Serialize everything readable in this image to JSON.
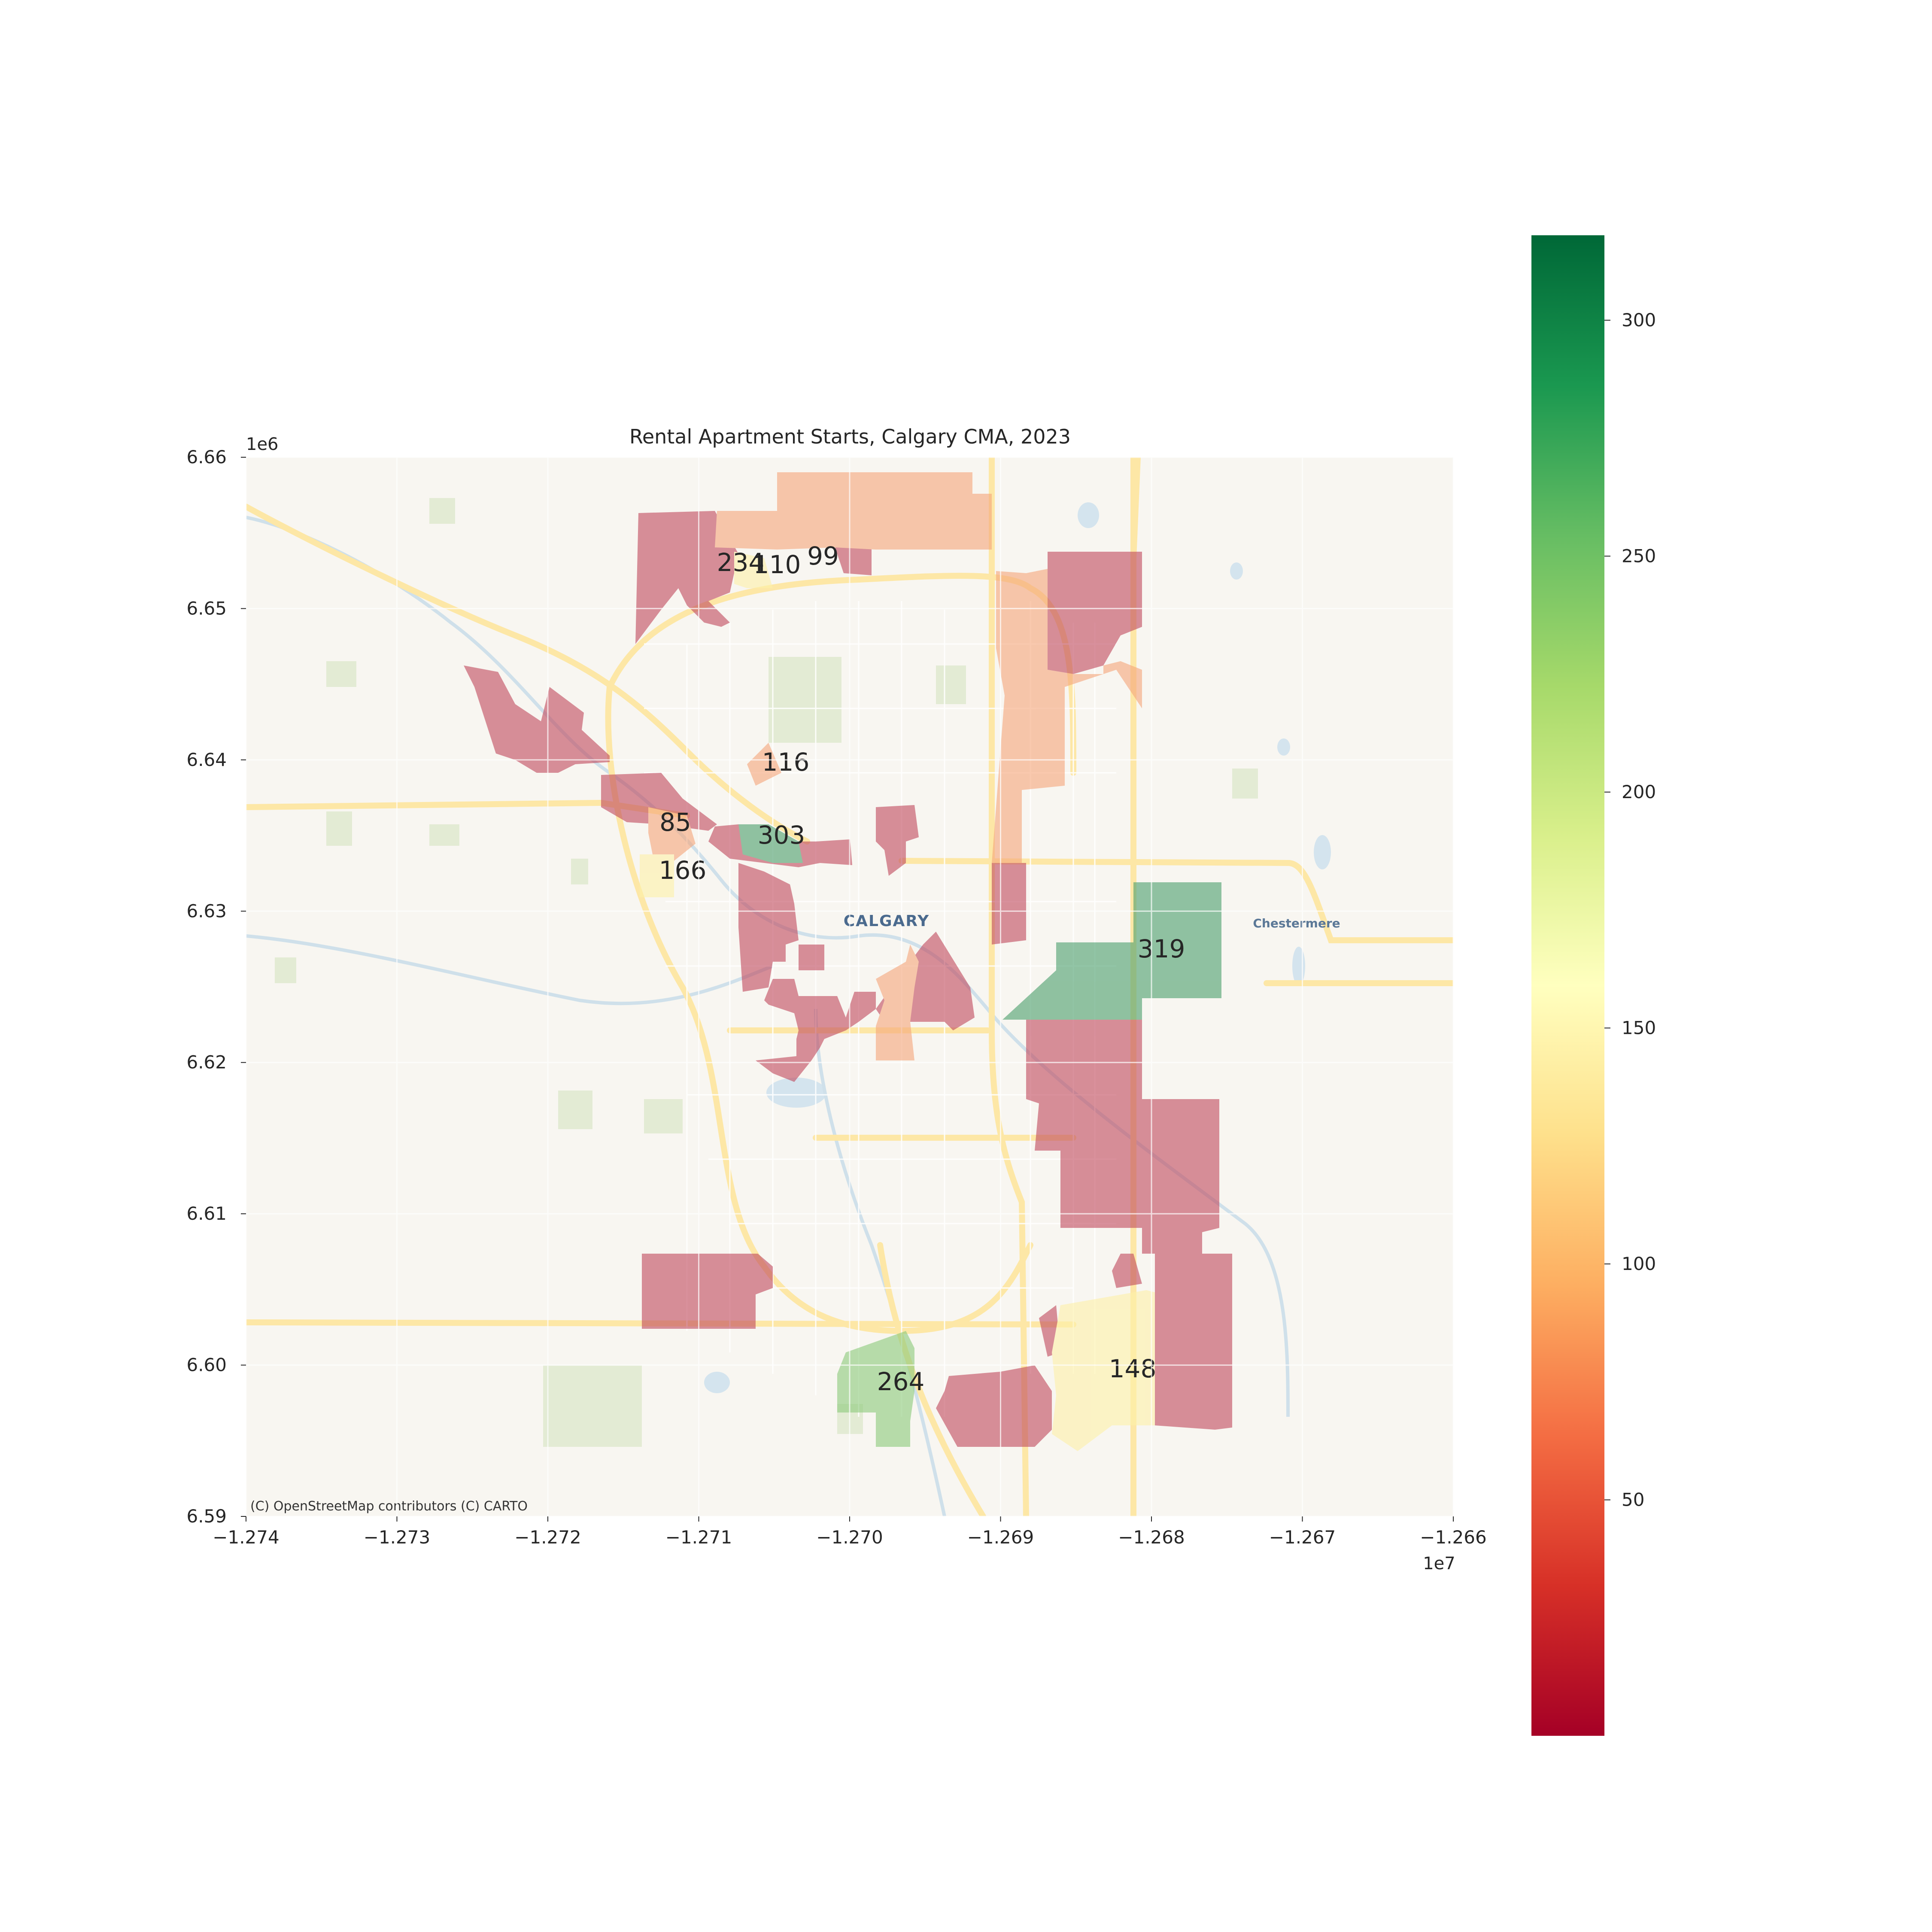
{
  "title": "Rental Apartment Starts, Calgary CMA, 2023",
  "attribution": "(C) OpenStreetMap contributors (C) CARTO",
  "place_labels": {
    "calgary": "CALGARY",
    "chestermere": "Chestermere"
  },
  "axes": {
    "x_ticks": [
      {
        "value": -1.274,
        "label": "−1.274"
      },
      {
        "value": -1.273,
        "label": "−1.273"
      },
      {
        "value": -1.272,
        "label": "−1.272"
      },
      {
        "value": -1.271,
        "label": "−1.271"
      },
      {
        "value": -1.27,
        "label": "−1.270"
      },
      {
        "value": -1.269,
        "label": "−1.269"
      },
      {
        "value": -1.268,
        "label": "−1.268"
      },
      {
        "value": -1.267,
        "label": "−1.267"
      },
      {
        "value": -1.266,
        "label": "−1.266"
      }
    ],
    "x_offset": "1e7",
    "x_range": [
      -1.274,
      -1.266
    ],
    "y_ticks": [
      {
        "value": 6.59,
        "label": "6.59"
      },
      {
        "value": 6.6,
        "label": "6.60"
      },
      {
        "value": 6.61,
        "label": "6.61"
      },
      {
        "value": 6.62,
        "label": "6.62"
      },
      {
        "value": 6.63,
        "label": "6.63"
      },
      {
        "value": 6.64,
        "label": "6.64"
      },
      {
        "value": 6.65,
        "label": "6.65"
      },
      {
        "value": 6.66,
        "label": "6.66"
      }
    ],
    "y_offset": "1e6",
    "y_range": [
      6.59,
      6.66
    ]
  },
  "colorbar": {
    "cmap": "RdYlGn",
    "range": [
      0,
      318
    ],
    "ticks": [
      {
        "value": 50,
        "label": "50"
      },
      {
        "value": 100,
        "label": "100"
      },
      {
        "value": 150,
        "label": "150"
      },
      {
        "value": 200,
        "label": "200"
      },
      {
        "value": 250,
        "label": "250"
      },
      {
        "value": 300,
        "label": "300"
      }
    ]
  },
  "labelled_areas": [
    {
      "label": "234",
      "value": 234
    },
    {
      "label": "110",
      "value": 110
    },
    {
      "label": "99",
      "value": 99
    },
    {
      "label": "116",
      "value": 116
    },
    {
      "label": "85",
      "value": 85
    },
    {
      "label": "303",
      "value": 303
    },
    {
      "label": "166",
      "value": 166
    },
    {
      "label": "319",
      "value": 319
    },
    {
      "label": "264",
      "value": 264
    },
    {
      "label": "148",
      "value": 148
    }
  ]
}
